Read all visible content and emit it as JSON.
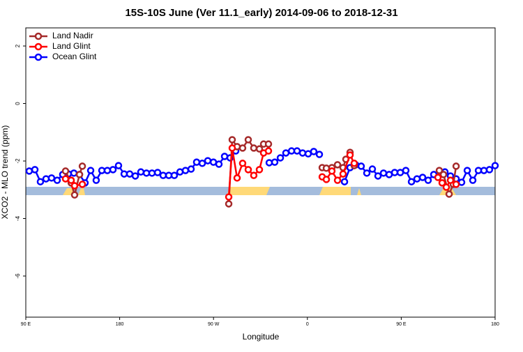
{
  "chart_data": {
    "type": "line",
    "title": "15S-10S June (Ver 11.1_early)   2014-09-06 to 2018-12-31",
    "xlabel": "Longitude",
    "ylabel": "XCO2 - MLO trend (ppm)",
    "xlim": [
      90,
      540
    ],
    "ylim": [
      -7.43,
      2.63
    ],
    "xticks": [
      {
        "value": 90,
        "label": "90 E"
      },
      180,
      {
        "value": 270,
        "label": "90 W"
      },
      {
        "value": 360,
        "label": "0"
      },
      {
        "value": 450,
        "label": "90 E"
      },
      {
        "value": 540,
        "label": "180"
      }
    ],
    "yticks": [
      2,
      0,
      -2,
      -4,
      -6
    ],
    "legend": "top-left",
    "series": [
      {
        "name": "Land Nadir",
        "color": "#a52a2a",
        "x": [
          128.1,
          133.5,
          136.8,
          141.5,
          144.2,
          null,
          284.6,
          287.9,
          292.6,
          297.9,
          303.3,
          308.6,
          314,
          318,
          322.7,
          null,
          374.2,
          378.2,
          383.5,
          388.9,
          394.2,
          396.9,
          400.9,
          404.9,
          null,
          486.5,
          490.5,
          495.9,
          499.9,
          502.6
        ],
        "values": [
          -2.35,
          -2.76,
          -3.18,
          -2.47,
          -2.18,
          null,
          -3.49,
          -1.26,
          -1.5,
          -1.55,
          -1.26,
          -1.55,
          -1.58,
          -1.41,
          -1.41,
          null,
          -2.23,
          -2.25,
          -2.23,
          -2.13,
          -2.23,
          -1.94,
          -1.7,
          -2.16,
          null,
          -2.33,
          -2.47,
          -3.15,
          -2.81,
          -2.18
        ]
      },
      {
        "name": "Land Glint",
        "color": "#ff0000",
        "x": [
          128.1,
          133.5,
          136.8,
          144.2,
          null,
          284.6,
          287.9,
          292.6,
          297.9,
          303.3,
          308.6,
          314,
          318,
          322.7,
          null,
          374.2,
          378.2,
          383.5,
          388.9,
          394.2,
          400.9,
          404.9,
          null,
          485.2,
          489.2,
          493.2,
          497.2,
          502.6
        ],
        "values": [
          -2.62,
          -2.67,
          -2.86,
          -2.81,
          null,
          -3.25,
          -1.55,
          -2.59,
          -2.08,
          -2.3,
          -2.5,
          -2.3,
          -1.72,
          -1.65,
          null,
          -2.55,
          -2.64,
          -2.35,
          -2.67,
          -2.45,
          -1.79,
          -2.08,
          null,
          -2.57,
          -2.76,
          -2.91,
          -2.67,
          -2.81
        ]
      },
      {
        "name": "Ocean Glint",
        "color": "#0000ff",
        "x": [
          93.3,
          98.7,
          104,
          109.4,
          114.7,
          120.1,
          125.4,
          130.8,
          136.1,
          141.5,
          146.8,
          152.2,
          157.5,
          162.9,
          168.2,
          173.6,
          178.9,
          184.3,
          189.6,
          195,
          200.3,
          205.7,
          211,
          216.4,
          221.7,
          227.1,
          232.4,
          237.8,
          243.1,
          248.5,
          253.8,
          259.2,
          264.5,
          269.9,
          275.2,
          280.6,
          285.9,
          291.3,
          null,
          323.4,
          328.7,
          334.1,
          339.4,
          344.8,
          350.1,
          355.4,
          360.8,
          366.1,
          371.5,
          null,
          395.6,
          400.9,
          406.3,
          411.6,
          417,
          422.3,
          427.7,
          433,
          438.4,
          443.7,
          449.1,
          454.4,
          459.8,
          465.1,
          470.5,
          475.8,
          481.2,
          486.5,
          491.9,
          497.2,
          502.6,
          507.9,
          513.3,
          518.6,
          524,
          529.3,
          534.6,
          540
        ],
        "values": [
          -2.35,
          -2.3,
          -2.72,
          -2.62,
          -2.59,
          -2.67,
          -2.47,
          -2.45,
          -2.42,
          -2.47,
          -2.76,
          -2.33,
          -2.67,
          -2.33,
          -2.33,
          -2.3,
          -2.16,
          -2.45,
          -2.45,
          -2.52,
          -2.38,
          -2.42,
          -2.42,
          -2.4,
          -2.5,
          -2.5,
          -2.5,
          -2.38,
          -2.33,
          -2.28,
          -2.04,
          -2.08,
          -1.99,
          -2.04,
          -2.11,
          -1.84,
          -1.89,
          -1.65,
          null,
          -2.06,
          -2.04,
          -1.89,
          -1.72,
          -1.65,
          -1.65,
          -1.72,
          -1.75,
          -1.67,
          -1.77,
          null,
          -2.72,
          -2.23,
          -2.13,
          -2.18,
          -2.42,
          -2.28,
          -2.52,
          -2.42,
          -2.47,
          -2.4,
          -2.4,
          -2.33,
          -2.72,
          -2.62,
          -2.57,
          -2.67,
          -2.47,
          -2.42,
          -2.38,
          -2.52,
          -2.62,
          -2.74,
          -2.33,
          -2.67,
          -2.33,
          -2.33,
          -2.3,
          -2.16
        ]
      }
    ]
  }
}
